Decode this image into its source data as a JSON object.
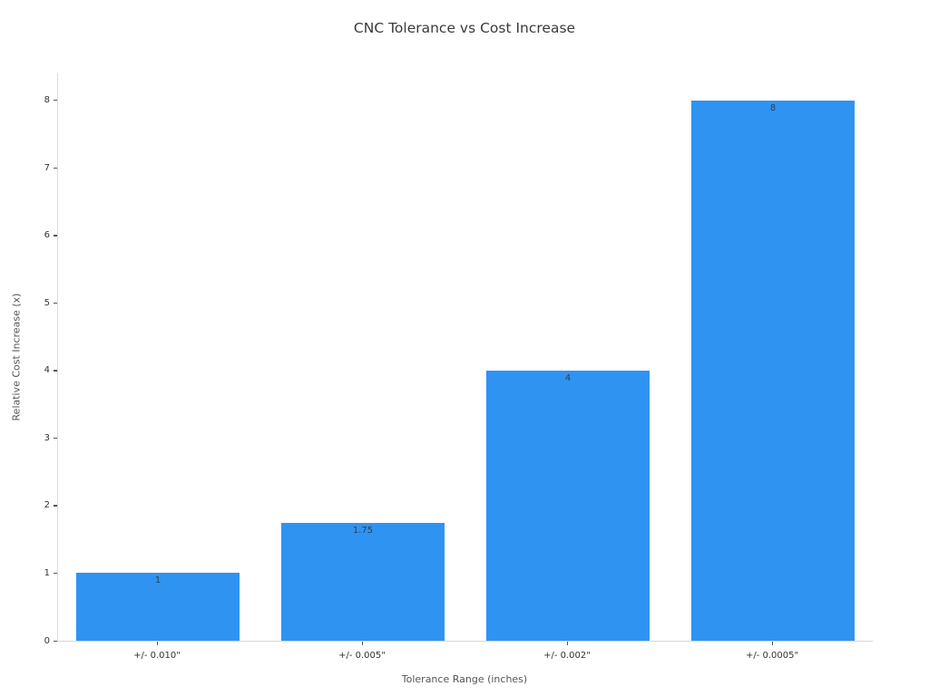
{
  "chart_data": {
    "type": "bar",
    "title": "CNC Tolerance vs Cost Increase",
    "xlabel": "Tolerance Range (inches)",
    "ylabel": "Relative Cost Increase (x)",
    "categories": [
      "+/- 0.010\"",
      "+/- 0.005\"",
      "+/- 0.002\"",
      "+/- 0.0005\""
    ],
    "values": [
      1,
      1.75,
      4,
      8
    ],
    "value_labels": [
      "1",
      "1.75",
      "4",
      "8"
    ],
    "yticks": [
      0,
      1,
      2,
      3,
      4,
      5,
      6,
      7,
      8
    ],
    "ylim": [
      0,
      8.4
    ],
    "grid": false,
    "legend_position": "none",
    "bar_color": "#2f93f2",
    "colors": {
      "title_text": "#3a3a3a",
      "tick_text": "#333333",
      "axis_label_text": "#555555",
      "spine": "#d9d9d9",
      "tick_mark": "#555555",
      "bar_value_text": "#31404e",
      "background": "#ffffff"
    }
  }
}
